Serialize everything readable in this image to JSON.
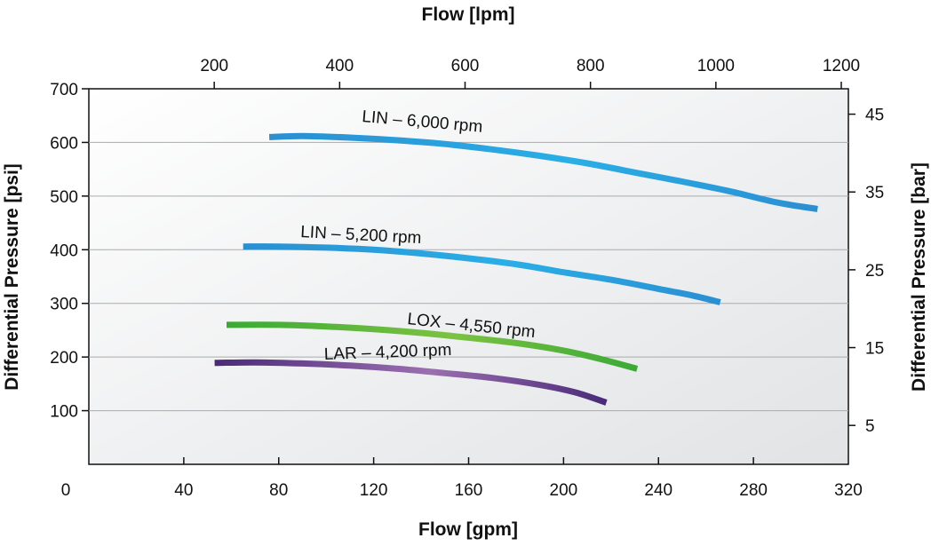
{
  "chart_data": {
    "type": "line",
    "title": "",
    "x_bottom": {
      "label": "Flow [gpm]",
      "range": [
        0,
        320
      ],
      "ticks": [
        0,
        40,
        80,
        120,
        160,
        200,
        240,
        280,
        320
      ],
      "tick_labels": [
        "0",
        "40",
        "80",
        "120",
        "160",
        "200",
        "240",
        "280",
        "320"
      ]
    },
    "x_top": {
      "label": "Flow [lpm]",
      "ticks": [
        200,
        400,
        600,
        800,
        1000,
        1200
      ],
      "tick_labels": [
        "200",
        "400",
        "600",
        "800",
        "1000",
        "1200"
      ]
    },
    "y_left": {
      "label": "Differential Pressure [psi]",
      "range": [
        0,
        700
      ],
      "ticks": [
        100,
        200,
        300,
        400,
        500,
        600,
        700
      ],
      "tick_labels": [
        "100",
        "200",
        "300",
        "400",
        "500",
        "600",
        "700"
      ]
    },
    "y_right": {
      "label": "Differential Pressure [bar]",
      "ticks": [
        5,
        15,
        25,
        35,
        45
      ],
      "tick_labels": [
        "5",
        "15",
        "25",
        "35",
        "45"
      ]
    },
    "grid": {
      "horizontal": true,
      "vertical": false
    },
    "series": [
      {
        "name": "LIN – 6,000 rpm",
        "color": "#2a8fd2",
        "highlight": "#2aaee6",
        "points": [
          [
            76,
            610
          ],
          [
            90,
            612
          ],
          [
            110,
            609
          ],
          [
            130,
            604
          ],
          [
            150,
            597
          ],
          [
            170,
            587
          ],
          [
            190,
            575
          ],
          [
            210,
            561
          ],
          [
            230,
            544
          ],
          [
            250,
            527
          ],
          [
            270,
            509
          ],
          [
            290,
            488
          ],
          [
            307,
            476
          ]
        ]
      },
      {
        "name": "LIN – 5,200 rpm",
        "color": "#2a8fd2",
        "highlight": "#2aaee6",
        "points": [
          [
            65,
            406
          ],
          [
            80,
            406
          ],
          [
            100,
            404
          ],
          [
            120,
            400
          ],
          [
            140,
            393
          ],
          [
            160,
            384
          ],
          [
            180,
            373
          ],
          [
            200,
            358
          ],
          [
            220,
            344
          ],
          [
            240,
            327
          ],
          [
            255,
            314
          ],
          [
            266,
            302
          ]
        ]
      },
      {
        "name": "LOX – 4,550 rpm",
        "color": "#3aaa35",
        "highlight": "#7cc242",
        "points": [
          [
            58,
            260
          ],
          [
            80,
            260
          ],
          [
            100,
            257
          ],
          [
            120,
            252
          ],
          [
            140,
            245
          ],
          [
            160,
            236
          ],
          [
            180,
            226
          ],
          [
            200,
            212
          ],
          [
            215,
            197
          ],
          [
            231,
            178
          ]
        ]
      },
      {
        "name": "LAR – 4,200 rpm",
        "color": "#4a2a78",
        "highlight": "#9b6fb0",
        "points": [
          [
            53,
            189
          ],
          [
            70,
            190
          ],
          [
            90,
            188
          ],
          [
            110,
            184
          ],
          [
            130,
            178
          ],
          [
            150,
            170
          ],
          [
            170,
            161
          ],
          [
            190,
            148
          ],
          [
            205,
            134
          ],
          [
            218,
            115
          ]
        ]
      }
    ]
  }
}
